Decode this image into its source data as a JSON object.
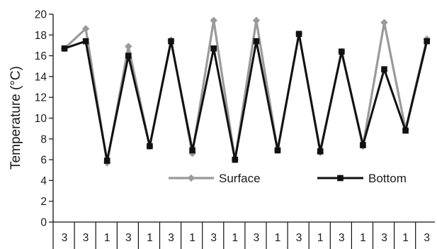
{
  "chart_data": {
    "type": "line",
    "title": "",
    "xlabel": "",
    "ylabel": "Temperature (°C)",
    "ylim": [
      0,
      20
    ],
    "yticks": [
      0,
      2,
      4,
      6,
      8,
      10,
      12,
      14,
      16,
      18,
      20
    ],
    "grid": false,
    "legend_position": "bottom-right",
    "categories": [
      "3",
      "3",
      "1",
      "3",
      "1",
      "3",
      "1",
      "3",
      "1",
      "3",
      "1",
      "3",
      "1",
      "3",
      "1",
      "3",
      "1",
      "3"
    ],
    "series": [
      {
        "name": "Surface",
        "color": "#9a9a9a",
        "marker": "diamond",
        "values": [
          16.7,
          18.6,
          5.7,
          16.9,
          7.3,
          17.5,
          6.6,
          19.4,
          6.0,
          19.4,
          6.9,
          18.1,
          6.7,
          16.4,
          7.3,
          19.2,
          8.9,
          17.6
        ]
      },
      {
        "name": "Bottom",
        "color": "#111111",
        "marker": "square",
        "values": [
          16.7,
          17.4,
          5.9,
          16.0,
          7.3,
          17.4,
          6.9,
          16.7,
          6.0,
          17.4,
          6.9,
          18.1,
          6.8,
          16.4,
          7.4,
          14.7,
          8.8,
          17.4
        ]
      }
    ]
  }
}
